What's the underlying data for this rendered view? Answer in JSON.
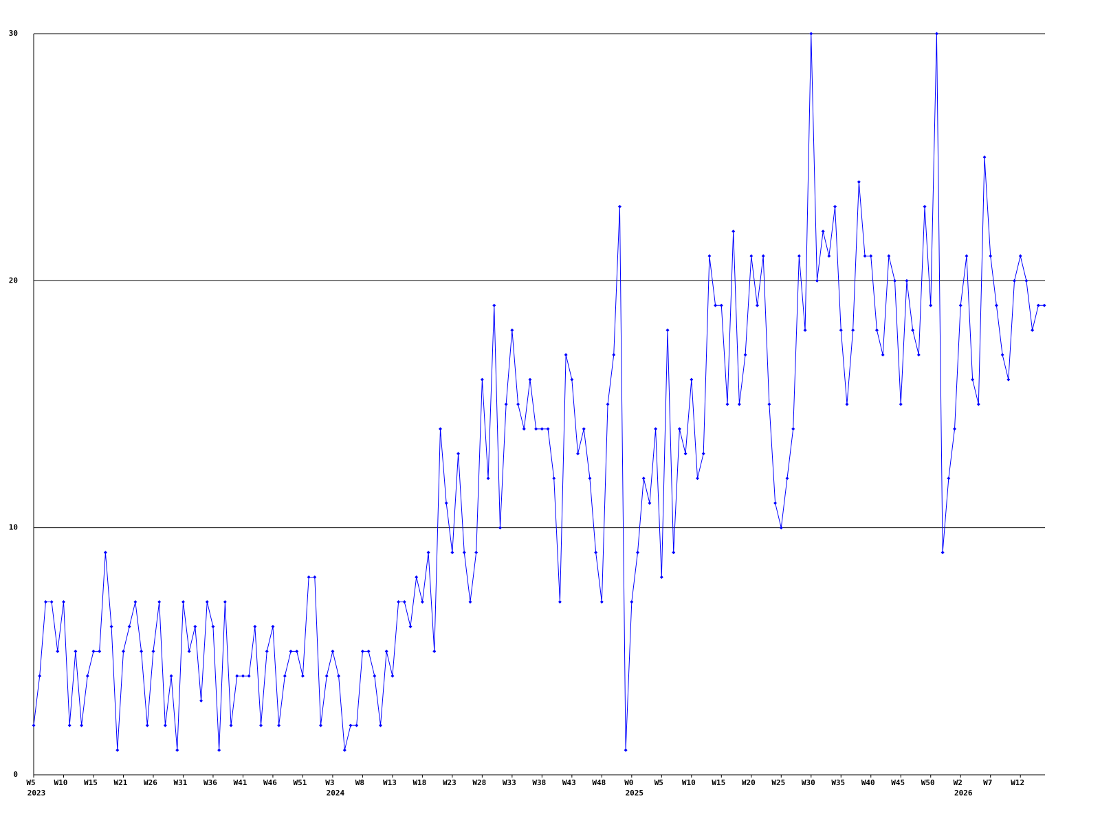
{
  "chart_data": {
    "type": "line",
    "color": "#0000ff",
    "values": [
      2,
      4,
      7,
      7,
      5,
      7,
      2,
      5,
      2,
      4,
      5,
      5,
      9,
      6,
      1,
      5,
      6,
      7,
      5,
      2,
      5,
      7,
      2,
      4,
      1,
      7,
      5,
      6,
      3,
      7,
      6,
      1,
      7,
      2,
      4,
      4,
      4,
      6,
      2,
      5,
      6,
      2,
      4,
      5,
      5,
      4,
      8,
      8,
      2,
      4,
      5,
      4,
      1,
      2,
      2,
      5,
      5,
      4,
      2,
      5,
      4,
      7,
      7,
      6,
      8,
      7,
      9,
      5,
      14,
      11,
      9,
      13,
      9,
      7,
      9,
      16,
      12,
      19,
      10,
      15,
      18,
      15,
      14,
      16,
      14,
      14,
      14,
      12,
      7,
      17,
      16,
      13,
      14,
      12,
      9,
      7,
      15,
      17,
      23,
      1,
      7,
      9,
      12,
      11,
      14,
      8,
      18,
      9,
      14,
      13,
      16,
      12,
      13,
      21,
      19,
      19,
      15,
      22,
      15,
      17,
      21,
      19,
      21,
      15,
      11,
      10,
      12,
      14,
      21,
      18,
      30,
      20,
      22,
      21,
      23,
      18,
      15,
      18,
      24,
      21,
      21,
      18,
      17,
      21,
      20,
      15,
      20,
      18,
      17,
      23,
      19,
      30,
      9,
      12,
      14,
      19,
      21,
      16,
      15,
      25,
      21,
      19,
      17,
      16,
      20,
      21,
      20,
      18,
      19,
      19
    ],
    "xlim": [
      0,
      169
    ],
    "xticks": [
      {
        "value": 0,
        "label": "W5"
      },
      {
        "value": 5,
        "label": "W10"
      },
      {
        "value": 10,
        "label": "W15"
      },
      {
        "value": 15,
        "label": "W21"
      },
      {
        "value": 20,
        "label": "W26"
      },
      {
        "value": 25,
        "label": "W31"
      },
      {
        "value": 30,
        "label": "W36"
      },
      {
        "value": 35,
        "label": "W41"
      },
      {
        "value": 40,
        "label": "W46"
      },
      {
        "value": 45,
        "label": "W51"
      },
      {
        "value": 50,
        "label": "W3"
      },
      {
        "value": 55,
        "label": "W8"
      },
      {
        "value": 60,
        "label": "W13"
      },
      {
        "value": 65,
        "label": "W18"
      },
      {
        "value": 70,
        "label": "W23"
      },
      {
        "value": 75,
        "label": "W28"
      },
      {
        "value": 80,
        "label": "W33"
      },
      {
        "value": 85,
        "label": "W38"
      },
      {
        "value": 90,
        "label": "W43"
      },
      {
        "value": 95,
        "label": "W48"
      },
      {
        "value": 100,
        "label": "W0"
      },
      {
        "value": 105,
        "label": "W5"
      },
      {
        "value": 110,
        "label": "W10"
      },
      {
        "value": 115,
        "label": "W15"
      },
      {
        "value": 120,
        "label": "W20"
      },
      {
        "value": 125,
        "label": "W25"
      },
      {
        "value": 130,
        "label": "W30"
      },
      {
        "value": 135,
        "label": "W35"
      },
      {
        "value": 140,
        "label": "W40"
      },
      {
        "value": 145,
        "label": "W45"
      },
      {
        "value": 150,
        "label": "W50"
      },
      {
        "value": 155,
        "label": "W2"
      },
      {
        "value": 160,
        "label": "W7"
      },
      {
        "value": 165,
        "label": "W12"
      }
    ],
    "year_ticks": [
      {
        "value": 0,
        "label": "2023"
      },
      {
        "value": 50,
        "label": "2024"
      },
      {
        "value": 100,
        "label": "2025"
      },
      {
        "value": 155,
        "label": "2026"
      }
    ],
    "ylim": [
      0,
      30
    ],
    "yticks": [
      0,
      10,
      20,
      30
    ],
    "grid": true
  }
}
